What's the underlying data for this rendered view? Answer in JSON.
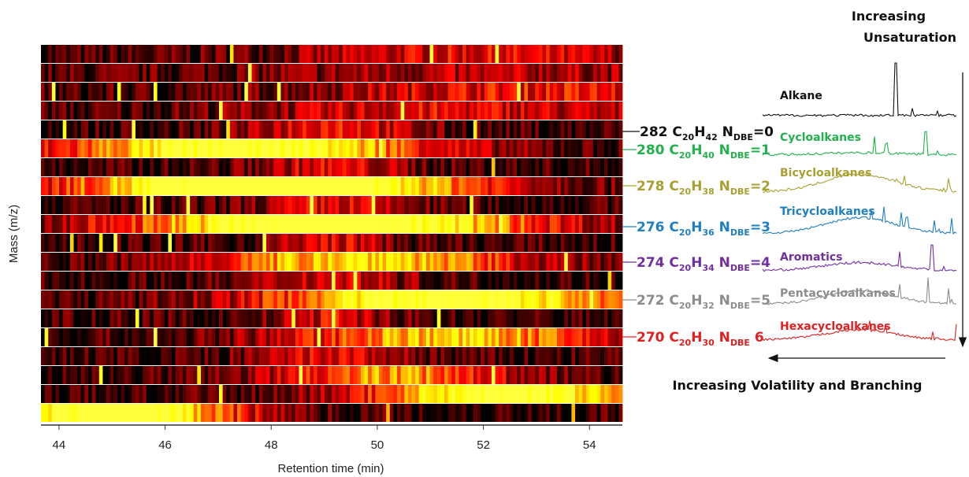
{
  "chart_data": {
    "type": "heatmap",
    "xlabel": "Retention time (min)",
    "ylabel": "Mass (m/z)",
    "xlim": [
      43.66,
      54.62
    ],
    "xticks": [
      44,
      46,
      48,
      50,
      52,
      54
    ]
  },
  "row_labels": [
    {
      "parts": [
        "282 C",
        "20",
        "H",
        "42",
        " N",
        "DBE",
        "=0"
      ],
      "color": "#111111"
    },
    {
      "parts": [
        "280 C",
        "20",
        "H",
        "40",
        " N",
        "DBE",
        "=1"
      ],
      "color": "#22b14c"
    },
    {
      "parts": [
        "278 C",
        "20",
        "H",
        "38",
        " N",
        "DBE",
        "=2"
      ],
      "color": "#a9a032"
    },
    {
      "parts": [
        "276 C",
        "20",
        "H",
        "36",
        " N",
        "DBE",
        "=3"
      ],
      "color": "#1f7fc0"
    },
    {
      "parts": [
        "274 C",
        "20",
        "H",
        "34",
        " N",
        "DBE",
        "=4"
      ],
      "color": "#7030a0"
    },
    {
      "parts": [
        "272 C",
        "20",
        "H",
        "32",
        " N",
        "DBE",
        "=5"
      ],
      "color": "#8c8c8c"
    },
    {
      "parts": [
        "270 C",
        "20",
        "H",
        "30",
        " N",
        "DBE",
        " 6"
      ],
      "color": "#e02020"
    }
  ],
  "classes": [
    {
      "name": "Alkane",
      "color": "#111111"
    },
    {
      "name": "Cycloalkanes",
      "color": "#22b14c"
    },
    {
      "name": "Bicycloalkanes",
      "color": "#a9a032"
    },
    {
      "name": "Tricycloalkanes",
      "color": "#1f7fc0"
    },
    {
      "name": "Aromatics",
      "color": "#7030a0"
    },
    {
      "name": "Pentacycloalkanes",
      "color": "#8c8c8c"
    },
    {
      "name": "Hexacycloalkanes",
      "color": "#e02020"
    }
  ],
  "arrows": {
    "unsaturation": [
      "Increasing",
      "Unsaturation"
    ],
    "volatility": "Increasing Volatility and Branching"
  }
}
